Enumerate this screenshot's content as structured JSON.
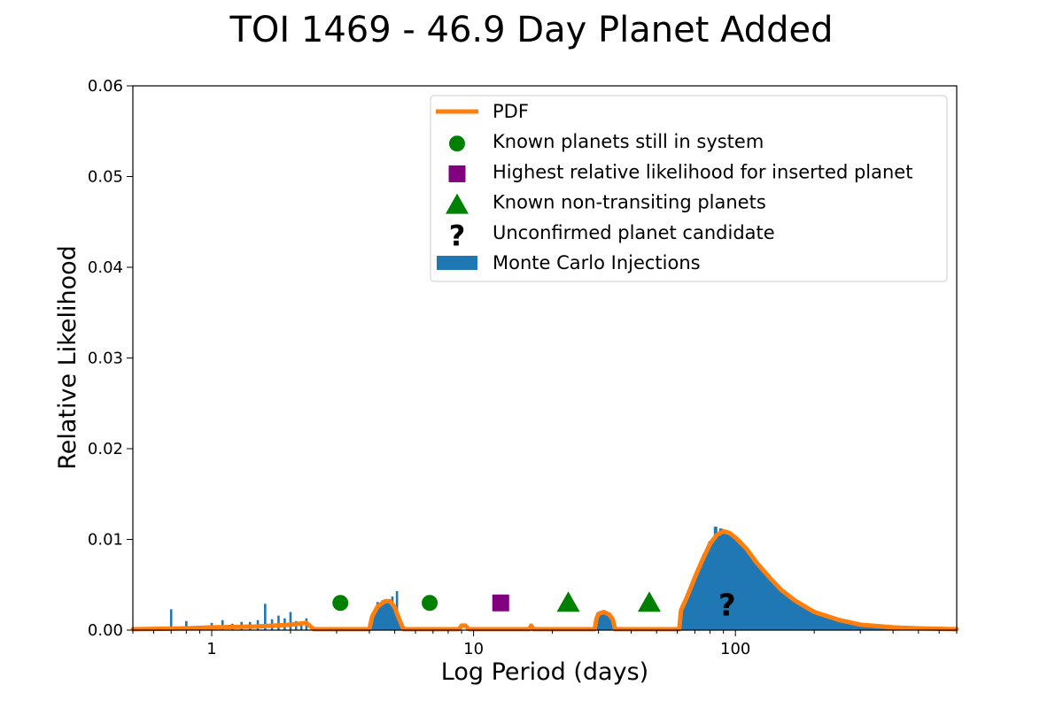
{
  "chart_data": {
    "type": "bar",
    "title": "TOI 1469 - 46.9 Day Planet Added",
    "xlabel": "Log Period (days)",
    "ylabel": "Relative Likelihood",
    "xscale": "log",
    "xlim": [
      0.5,
      700
    ],
    "ylim": [
      0,
      0.06
    ],
    "x_ticks": [
      1,
      10,
      100
    ],
    "y_ticks": [
      0.0,
      0.01,
      0.02,
      0.03,
      0.04,
      0.05,
      0.06
    ],
    "legend_position": "top-right",
    "grid": false,
    "colors": {
      "pdf": "#ff7f0e",
      "histogram": "#1f77b4",
      "known": "#008000",
      "inserted": "#800080",
      "candidate": "#bfbf00"
    },
    "legend": [
      {
        "label": "PDF",
        "symbol": "line"
      },
      {
        "label": "Known planets still in system",
        "symbol": "circle"
      },
      {
        "label": "Highest relative likelihood for inserted planet",
        "symbol": "square"
      },
      {
        "label": "Known non-transiting planets",
        "symbol": "triangle"
      },
      {
        "label": "Unconfirmed planet candidate",
        "symbol": "question"
      },
      {
        "label": "Monte Carlo Injections",
        "symbol": "patch"
      }
    ],
    "known_planets": [
      {
        "period": 3.1,
        "y": 0.003
      },
      {
        "period": 6.8,
        "y": 0.003
      }
    ],
    "inserted_planet": [
      {
        "period": 12.7,
        "y": 0.003
      }
    ],
    "non_transiting_planets": [
      {
        "period": 23.0,
        "y": 0.003
      },
      {
        "period": 46.9,
        "y": 0.003
      }
    ],
    "candidates": [
      {
        "period": 93,
        "y": 0.0028
      }
    ],
    "pdf": {
      "x": [
        0.5,
        0.8,
        1.0,
        1.5,
        2.0,
        2.3,
        2.45,
        3.0,
        4.0,
        4.1,
        4.3,
        4.6,
        4.8,
        5.0,
        5.2,
        5.4,
        8.8,
        9.0,
        9.3,
        9.6,
        16.3,
        16.6,
        16.9,
        29.0,
        29.5,
        30.0,
        31.5,
        33.0,
        34.0,
        34.7,
        61,
        62,
        65,
        70,
        75,
        80,
        85,
        90,
        95,
        100,
        110,
        120,
        135,
        150,
        170,
        200,
        250,
        300,
        400,
        500,
        700
      ],
      "y": [
        0.0001,
        0.0002,
        0.0003,
        0.0004,
        0.0006,
        0.0008,
        0.0001,
        0.0001,
        0.0001,
        0.0015,
        0.0026,
        0.0032,
        0.0032,
        0.0025,
        0.0012,
        0.0001,
        0.0001,
        0.0005,
        0.0005,
        0.0001,
        0.0001,
        0.0005,
        0.0001,
        0.0001,
        0.0013,
        0.0018,
        0.002,
        0.0017,
        0.0012,
        0.0001,
        0.0001,
        0.0022,
        0.0035,
        0.0058,
        0.0078,
        0.0095,
        0.0105,
        0.0109,
        0.0107,
        0.0102,
        0.009,
        0.0075,
        0.0058,
        0.0044,
        0.0032,
        0.002,
        0.0011,
        0.0006,
        0.0003,
        0.0002,
        0.0001
      ]
    },
    "histogram": {
      "x": [
        0.7,
        0.8,
        0.9,
        1.0,
        1.1,
        1.2,
        1.3,
        1.4,
        1.5,
        1.6,
        1.7,
        1.8,
        1.9,
        2.0,
        2.1,
        2.2,
        2.3,
        4.3,
        4.5,
        4.7,
        4.9,
        5.1,
        33.0,
        72,
        76,
        80,
        84,
        88,
        92,
        96,
        100,
        106,
        112,
        118,
        125,
        133,
        141,
        150,
        160,
        170,
        180,
        190,
        200,
        215,
        230,
        245,
        260
      ],
      "y": [
        0.0023,
        0.001,
        0.0004,
        0.0008,
        0.0011,
        0.0007,
        0.0009,
        0.0009,
        0.0011,
        0.0029,
        0.0012,
        0.0016,
        0.0013,
        0.002,
        0.001,
        0.0008,
        0.0013,
        0.0031,
        0.0033,
        0.0022,
        0.0037,
        0.0043,
        0.0019,
        0.0062,
        0.0084,
        0.0098,
        0.0114,
        0.0112,
        0.011,
        0.0106,
        0.0098,
        0.0093,
        0.0084,
        0.007,
        0.0063,
        0.0054,
        0.0047,
        0.004,
        0.0034,
        0.0028,
        0.0023,
        0.0019,
        0.0015,
        0.0011,
        0.0008,
        0.0006,
        0.0004
      ]
    }
  }
}
